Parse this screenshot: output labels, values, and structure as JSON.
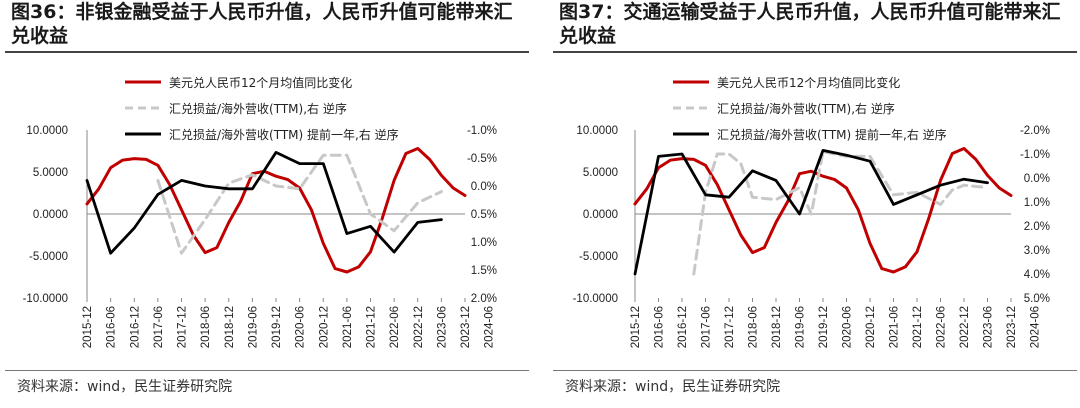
{
  "panels": [
    {
      "title": "图36：非银金融受益于人民币升值，人民币升值可能带来汇兑收益",
      "source": "资料来源：wind，民生证券研究院",
      "chart_data": {
        "type": "line",
        "legend": [
          {
            "name": "美元兑人民币12个月均值同比变化",
            "color": "#c00000",
            "style": "solid"
          },
          {
            "name": "汇兑损益/海外营收(TTM),右 逆序",
            "color": "#c8c8c8",
            "style": "dashed"
          },
          {
            "name": "汇兑损益/海外营收(TTM) 提前一年,右 逆序",
            "color": "#000000",
            "style": "solid"
          }
        ],
        "x_ticks": [
          "2015-12",
          "2016-06",
          "2016-12",
          "2017-06",
          "2017-12",
          "2018-06",
          "2018-12",
          "2019-06",
          "2019-12",
          "2020-06",
          "2020-12",
          "2021-06",
          "2021-12",
          "2022-06",
          "2022-12",
          "2023-06",
          "2023-12",
          "2024-06"
        ],
        "y_left": {
          "min": -10,
          "max": 10,
          "ticks": [
            "10.0000",
            "5.0000",
            "0.0000",
            "-5.0000",
            "-10.0000"
          ],
          "tick_values": [
            10,
            5,
            0,
            -5,
            -10
          ]
        },
        "y_right": {
          "min": -1.0,
          "max": 2.0,
          "inverted": true,
          "ticks": [
            "-1.0%",
            "-0.5%",
            "0.0%",
            "0.5%",
            "1.0%",
            "1.5%",
            "2.0%"
          ],
          "tick_values": [
            -1.0,
            -0.5,
            0.0,
            0.5,
            1.0,
            1.5,
            2.0
          ]
        },
        "series": [
          {
            "name": "美元兑人民币12个月均值同比变化",
            "axis": "left",
            "color": "#c00000",
            "dash": "",
            "width": 3,
            "points": [
              [
                0,
                1.2
              ],
              [
                1,
                3.0
              ],
              [
                2,
                5.5
              ],
              [
                3,
                6.4
              ],
              [
                4,
                6.6
              ],
              [
                5,
                6.5
              ],
              [
                6,
                5.8
              ],
              [
                7,
                3.5
              ],
              [
                8,
                0.5
              ],
              [
                9,
                -2.5
              ],
              [
                10,
                -4.6
              ],
              [
                11,
                -4.0
              ],
              [
                12,
                -1.0
              ],
              [
                13,
                1.5
              ],
              [
                14,
                4.8
              ],
              [
                15,
                5.1
              ],
              [
                16,
                4.5
              ],
              [
                17,
                4.1
              ],
              [
                18,
                3.1
              ],
              [
                19,
                0.5
              ],
              [
                20,
                -3.5
              ],
              [
                21,
                -6.5
              ],
              [
                22,
                -6.9
              ],
              [
                23,
                -6.3
              ],
              [
                24,
                -4.5
              ],
              [
                25,
                -0.5
              ],
              [
                26,
                4.0
              ],
              [
                27,
                7.2
              ],
              [
                28,
                7.8
              ],
              [
                29,
                6.5
              ],
              [
                30,
                4.6
              ],
              [
                31,
                3.1
              ],
              [
                32,
                2.2
              ]
            ]
          },
          {
            "name": "汇兑损益/海外营收(TTM),右 逆序",
            "axis": "right",
            "color": "#c8c8c8",
            "dash": "9,6",
            "width": 3,
            "points": [
              [
                6,
                -0.1
              ],
              [
                8,
                1.2
              ],
              [
                10,
                0.6
              ],
              [
                12,
                -0.05
              ],
              [
                14,
                -0.2
              ],
              [
                16,
                0.0
              ],
              [
                18,
                0.05
              ],
              [
                20,
                -0.55
              ],
              [
                22,
                -0.55
              ],
              [
                24,
                0.5
              ],
              [
                26,
                0.8
              ],
              [
                28,
                0.3
              ],
              [
                30,
                0.1
              ]
            ]
          },
          {
            "name": "汇兑损益/海外营收(TTM) 提前一年,右 逆序",
            "axis": "right",
            "color": "#000000",
            "dash": "",
            "width": 2.8,
            "points": [
              [
                0,
                -0.1
              ],
              [
                2,
                1.2
              ],
              [
                4,
                0.75
              ],
              [
                6,
                0.15
              ],
              [
                8,
                -0.1
              ],
              [
                10,
                0.0
              ],
              [
                12,
                0.05
              ],
              [
                14,
                0.05
              ],
              [
                16,
                -0.6
              ],
              [
                18,
                -0.4
              ],
              [
                20,
                -0.4
              ],
              [
                22,
                0.85
              ],
              [
                24,
                0.72
              ],
              [
                26,
                1.18
              ],
              [
                28,
                0.65
              ],
              [
                30,
                0.6
              ]
            ]
          }
        ]
      }
    },
    {
      "title": "图37：交通运输受益于人民币升值，人民币升值可能带来汇兑收益",
      "source": "资料来源：wind，民生证券研究院",
      "chart_data": {
        "type": "line",
        "legend": [
          {
            "name": "美元兑人民币12个月均值同比变化",
            "color": "#c00000",
            "style": "solid"
          },
          {
            "name": "汇兑损益/海外营收(TTM),右 逆序",
            "color": "#c8c8c8",
            "style": "dashed"
          },
          {
            "name": "汇兑损益/海外营收(TTM) 提前一年,右 逆序",
            "color": "#000000",
            "style": "solid"
          }
        ],
        "x_ticks": [
          "2015-12",
          "2016-06",
          "2016-12",
          "2017-06",
          "2017-12",
          "2018-06",
          "2018-12",
          "2019-06",
          "2019-12",
          "2020-06",
          "2020-12",
          "2021-06",
          "2021-12",
          "2022-06",
          "2022-12",
          "2023-06",
          "2023-12",
          "2024-06"
        ],
        "y_left": {
          "min": -10,
          "max": 10,
          "ticks": [
            "10.0000",
            "5.0000",
            "0.0000",
            "-5.0000",
            "-10.0000"
          ],
          "tick_values": [
            10,
            5,
            0,
            -5,
            -10
          ]
        },
        "y_right": {
          "min": -2.0,
          "max": 5.0,
          "inverted": true,
          "ticks": [
            "-2.0%",
            "-1.0%",
            "0.0%",
            "1.0%",
            "2.0%",
            "3.0%",
            "4.0%",
            "5.0%"
          ],
          "tick_values": [
            -2.0,
            -1.0,
            0.0,
            1.0,
            2.0,
            3.0,
            4.0,
            5.0
          ]
        },
        "series": [
          {
            "name": "美元兑人民币12个月均值同比变化",
            "axis": "left",
            "color": "#c00000",
            "dash": "",
            "width": 3,
            "points": [
              [
                0,
                1.2
              ],
              [
                1,
                3.0
              ],
              [
                2,
                5.5
              ],
              [
                3,
                6.4
              ],
              [
                4,
                6.6
              ],
              [
                5,
                6.5
              ],
              [
                6,
                5.8
              ],
              [
                7,
                3.5
              ],
              [
                8,
                0.5
              ],
              [
                9,
                -2.5
              ],
              [
                10,
                -4.6
              ],
              [
                11,
                -4.0
              ],
              [
                12,
                -1.0
              ],
              [
                13,
                1.5
              ],
              [
                14,
                4.8
              ],
              [
                15,
                5.1
              ],
              [
                16,
                4.5
              ],
              [
                17,
                4.1
              ],
              [
                18,
                3.1
              ],
              [
                19,
                0.5
              ],
              [
                20,
                -3.5
              ],
              [
                21,
                -6.5
              ],
              [
                22,
                -6.9
              ],
              [
                23,
                -6.3
              ],
              [
                24,
                -4.5
              ],
              [
                25,
                -0.5
              ],
              [
                26,
                4.0
              ],
              [
                27,
                7.2
              ],
              [
                28,
                7.8
              ],
              [
                29,
                6.5
              ],
              [
                30,
                4.6
              ],
              [
                31,
                3.1
              ],
              [
                32,
                2.2
              ]
            ]
          },
          {
            "name": "汇兑损益/海外营收(TTM),右 逆序",
            "axis": "right",
            "color": "#c8c8c8",
            "dash": "9,6",
            "width": 3,
            "points": [
              [
                5,
                4.0
              ],
              [
                6,
                0.6
              ],
              [
                7,
                -1.0
              ],
              [
                8,
                -1.0
              ],
              [
                9,
                -0.6
              ],
              [
                10,
                0.8
              ],
              [
                12,
                0.9
              ],
              [
                14,
                0.4
              ],
              [
                15,
                1.5
              ],
              [
                16,
                -1.1
              ],
              [
                18,
                -0.9
              ],
              [
                20,
                -0.9
              ],
              [
                22,
                0.7
              ],
              [
                24,
                0.6
              ],
              [
                26,
                1.1
              ],
              [
                27,
                0.5
              ],
              [
                28,
                0.3
              ],
              [
                30,
                0.4
              ]
            ]
          },
          {
            "name": "汇兑损益/海外营收(TTM) 提前一年,右 逆序",
            "axis": "right",
            "color": "#000000",
            "dash": "",
            "width": 2.8,
            "points": [
              [
                0,
                4.0
              ],
              [
                2,
                -0.9
              ],
              [
                4,
                -1.0
              ],
              [
                6,
                0.7
              ],
              [
                8,
                0.8
              ],
              [
                10,
                -0.3
              ],
              [
                12,
                0.1
              ],
              [
                14,
                1.5
              ],
              [
                16,
                -1.15
              ],
              [
                18,
                -0.95
              ],
              [
                20,
                -0.7
              ],
              [
                22,
                1.1
              ],
              [
                24,
                0.7
              ],
              [
                26,
                0.3
              ],
              [
                28,
                0.05
              ],
              [
                30,
                0.2
              ]
            ]
          }
        ]
      }
    }
  ]
}
